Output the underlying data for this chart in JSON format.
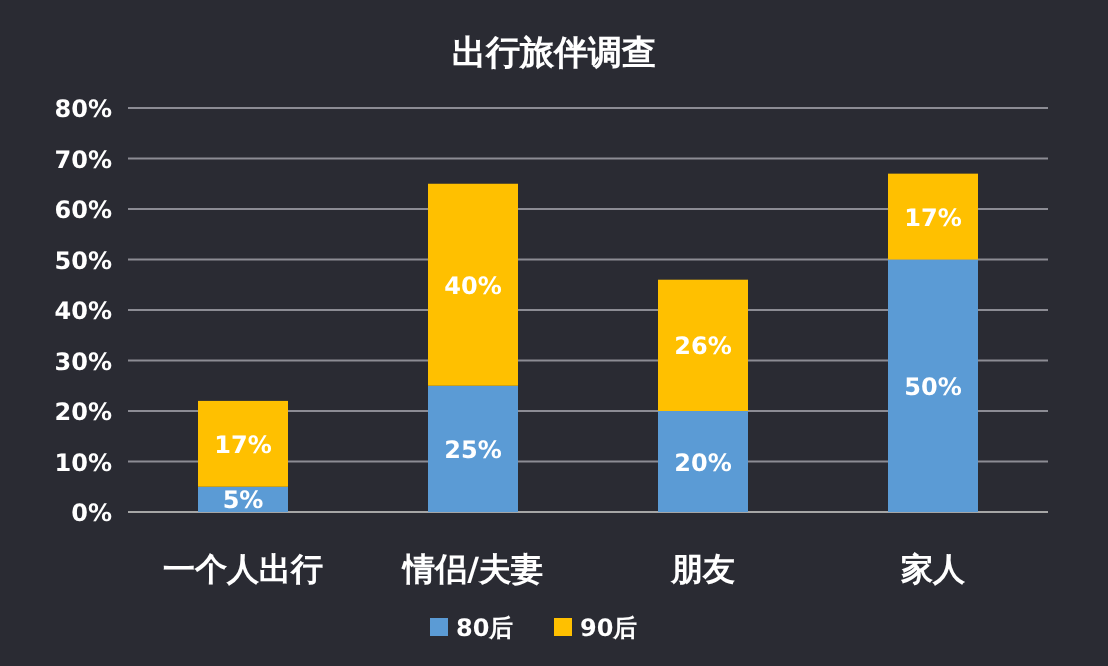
{
  "chart_data": {
    "type": "bar",
    "title": "出行旅伴调查",
    "stacked": true,
    "categories": [
      "一个人出行",
      "情侣/夫妻",
      "朋友",
      "家人"
    ],
    "series": [
      {
        "name": "80后",
        "color": "#5b9bd5",
        "values": [
          5,
          25,
          20,
          50
        ],
        "value_labels": [
          "5%",
          "25%",
          "20%",
          "50%"
        ]
      },
      {
        "name": "90后",
        "color": "#ffc000",
        "values": [
          17,
          40,
          26,
          17
        ],
        "value_labels": [
          "17%",
          "40%",
          "26%",
          "17%"
        ]
      }
    ],
    "ylim": [
      0,
      80
    ],
    "yticks": [
      {
        "value": 0,
        "label": "0%"
      },
      {
        "value": 10,
        "label": "10%"
      },
      {
        "value": 20,
        "label": "20%"
      },
      {
        "value": 30,
        "label": "30%"
      },
      {
        "value": 40,
        "label": "40%"
      },
      {
        "value": 50,
        "label": "50%"
      },
      {
        "value": 60,
        "label": "60%"
      },
      {
        "value": 70,
        "label": "70%"
      },
      {
        "value": 80,
        "label": "80%"
      }
    ],
    "grid": "y",
    "legend": "bottom"
  }
}
